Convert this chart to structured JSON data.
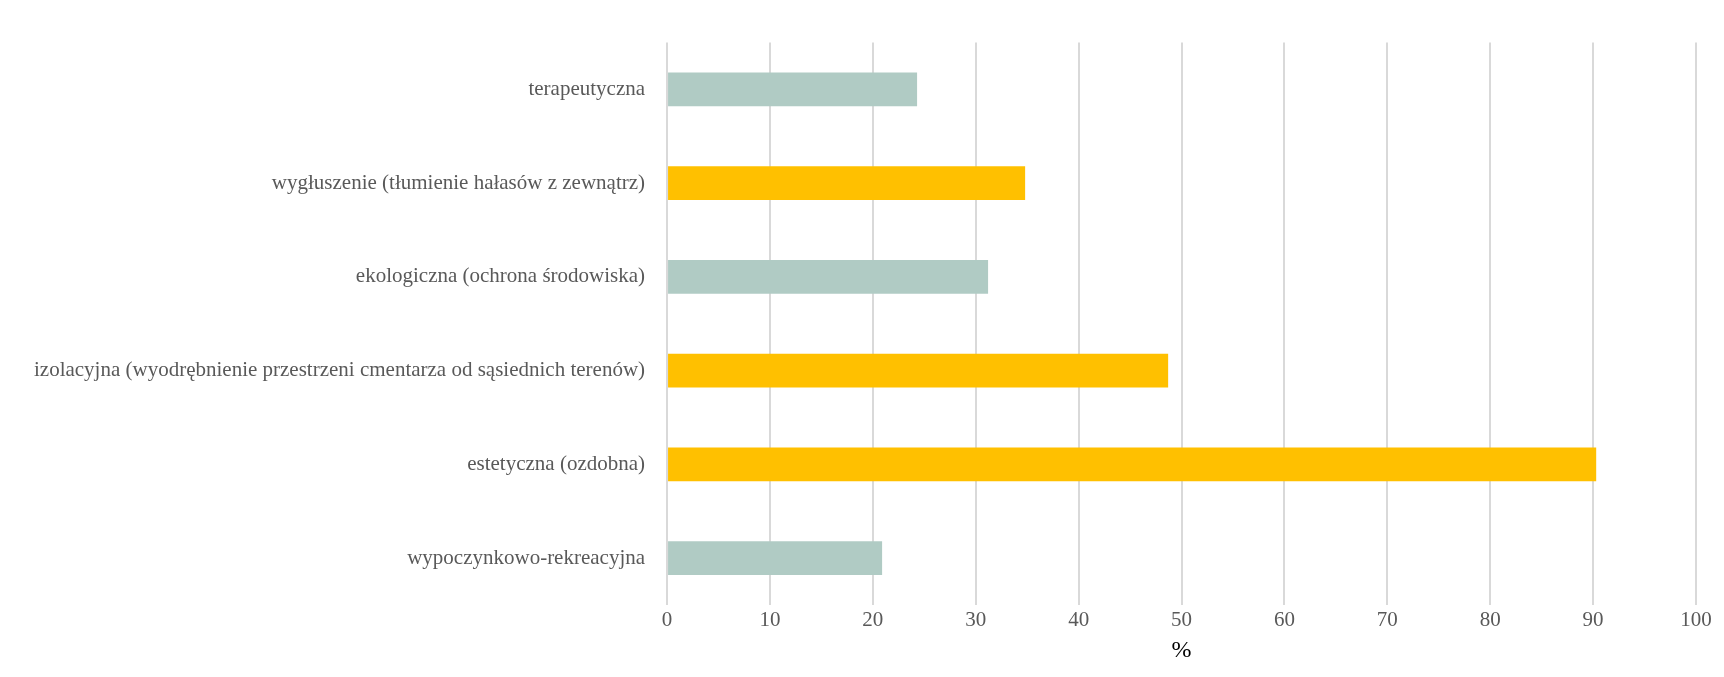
{
  "chart_data": {
    "type": "bar",
    "orientation": "horizontal",
    "xlabel": "%",
    "categories": [
      "terapeutyczna",
      "wygłuszenie (tłumienie hałasów z zewnątrz)",
      "ekologiczna (ochrona środowiska)",
      "izolacyjna (wyodrębnienie przestrzeni cmentarza od sąsiednich terenów)",
      "estetyczna (ozdobna)",
      "wypoczynkowo-rekreacyjna"
    ],
    "values": [
      24.3,
      34.8,
      31.2,
      48.7,
      90.3,
      20.9
    ],
    "colors": [
      "#b0cbc4",
      "#ffc000",
      "#b0cbc4",
      "#ffc000",
      "#ffc000",
      "#b0cbc4"
    ],
    "xlim": [
      0,
      100
    ],
    "xticks": [
      0,
      10,
      20,
      30,
      40,
      50,
      60,
      70,
      80,
      90,
      100
    ],
    "grid": "x",
    "legend": false
  }
}
